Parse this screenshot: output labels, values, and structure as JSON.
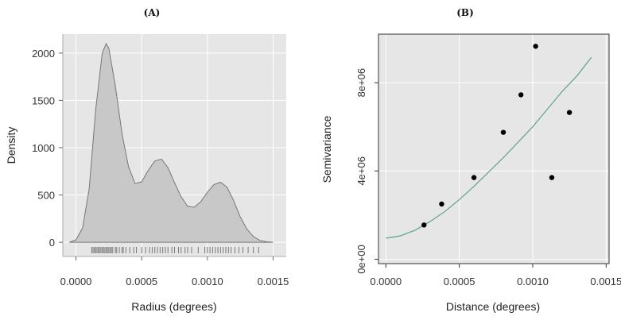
{
  "chart_data": [
    {
      "type": "area",
      "panel_label": "(A)",
      "xlabel": "Radius (degrees)",
      "ylabel": "Density",
      "xlim": [
        -0.0001,
        0.0016
      ],
      "ylim": [
        -150,
        2200
      ],
      "x_ticks": [
        0.0,
        0.0005,
        0.001,
        0.0015
      ],
      "x_tick_labels": [
        "0.0000",
        "0.0005",
        "0.0010",
        "0.0015"
      ],
      "y_ticks": [
        0,
        500,
        1000,
        1500,
        2000
      ],
      "y_tick_labels": [
        "0",
        "500",
        "1000",
        "1500",
        "2000"
      ],
      "grid": true,
      "density_curve": {
        "x": [
          -5e-05,
          0.0,
          5e-05,
          0.0001,
          0.00015,
          0.0002,
          0.00023,
          0.00025,
          0.0003,
          0.00035,
          0.0004,
          0.00045,
          0.0005,
          0.00055,
          0.0006,
          0.00065,
          0.0007,
          0.00075,
          0.0008,
          0.00085,
          0.0009,
          0.00095,
          0.001,
          0.00105,
          0.0011,
          0.00115,
          0.0012,
          0.00125,
          0.0013,
          0.00135,
          0.0014,
          0.00145,
          0.0015
        ],
        "y": [
          0,
          25,
          150,
          560,
          1400,
          2000,
          2100,
          2050,
          1650,
          1150,
          800,
          620,
          640,
          760,
          860,
          880,
          790,
          630,
          480,
          380,
          370,
          430,
          530,
          610,
          635,
          580,
          440,
          270,
          140,
          60,
          20,
          5,
          0
        ]
      },
      "rug": [
        0.00012,
        0.00013,
        0.00014,
        0.00015,
        0.00016,
        0.00017,
        0.00018,
        0.00019,
        0.0002,
        0.00021,
        0.00022,
        0.00023,
        0.00024,
        0.00025,
        0.00026,
        0.00027,
        0.00028,
        0.0003,
        0.00031,
        0.00033,
        0.00035,
        0.00036,
        0.00038,
        0.00041,
        0.00044,
        0.00046,
        0.0005,
        0.00053,
        0.00056,
        0.00058,
        0.0006,
        0.00062,
        0.00064,
        0.00066,
        0.00068,
        0.0007,
        0.00073,
        0.00075,
        0.00078,
        0.0008,
        0.00083,
        0.00085,
        0.00088,
        0.00093,
        0.00098,
        0.001,
        0.00102,
        0.00104,
        0.00106,
        0.00108,
        0.0011,
        0.00112,
        0.00114,
        0.00116,
        0.00118,
        0.00121,
        0.00124,
        0.00127,
        0.00131,
        0.00135,
        0.00139
      ]
    },
    {
      "type": "scatter",
      "panel_label": "(B)",
      "xlabel": "Distance (degrees)",
      "ylabel": "Semivariance",
      "xlim": [
        -5e-05,
        0.00152
      ],
      "ylim": [
        -200000,
        10200000
      ],
      "x_ticks": [
        0.0,
        0.0005,
        0.001,
        0.0015
      ],
      "x_tick_labels": [
        "0.0000",
        "0.0005",
        "0.0010",
        "0.0015"
      ],
      "y_ticks": [
        0,
        4000000,
        8000000
      ],
      "y_tick_labels": [
        "0e+00",
        "4e+06",
        "8e+06"
      ],
      "grid": true,
      "points": {
        "x": [
          0.00026,
          0.00038,
          0.0006,
          0.0008,
          0.00092,
          0.00102,
          0.00113,
          0.00125
        ],
        "y": [
          1550000,
          2500000,
          3700000,
          5750000,
          7450000,
          9650000,
          3700000,
          6650000
        ]
      },
      "fitted_curve": {
        "x": [
          0.0,
          0.0001,
          0.0002,
          0.0003,
          0.0004,
          0.0005,
          0.0006,
          0.0007,
          0.0008,
          0.0009,
          0.001,
          0.0011,
          0.0012,
          0.0013,
          0.0014
        ],
        "y": [
          950000,
          1060000,
          1320000,
          1700000,
          2150000,
          2700000,
          3300000,
          3950000,
          4600000,
          5300000,
          6000000,
          6800000,
          7600000,
          8300000,
          9150000
        ]
      },
      "curve_color": "#5fa38a"
    }
  ]
}
